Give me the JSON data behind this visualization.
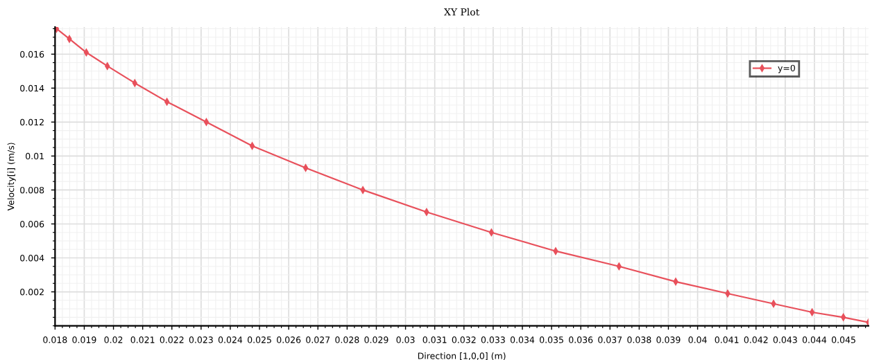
{
  "chart_data": {
    "type": "line",
    "title": "XY Plot",
    "xlabel": "Direction [1,0,0] (m)",
    "ylabel": "Velocity[i] (m/s)",
    "xlim": [
      0.018,
      0.04585
    ],
    "ylim": [
      0,
      0.0176
    ],
    "xticks": [
      0.018,
      0.019,
      0.02,
      0.021,
      0.022,
      0.023,
      0.024,
      0.025,
      0.026,
      0.027,
      0.028,
      0.029,
      0.03,
      0.031,
      0.032,
      0.033,
      0.034,
      0.035,
      0.036,
      0.037,
      0.038,
      0.039,
      0.04,
      0.041,
      0.042,
      0.043,
      0.044,
      0.045
    ],
    "yticks": [
      0.002,
      0.004,
      0.006,
      0.008,
      0.01,
      0.012,
      0.014,
      0.016
    ],
    "grid": true,
    "legend": "top right",
    "marker": "diamond",
    "line_style": "solid",
    "series": [
      {
        "name": "y=0",
        "color": "#e8505b",
        "x": [
          0.018,
          0.01805,
          0.01849,
          0.01907,
          0.01979,
          0.02073,
          0.02183,
          0.02318,
          0.02475,
          0.02658,
          0.02854,
          0.03072,
          0.03294,
          0.03514,
          0.03731,
          0.03925,
          0.04103,
          0.0426,
          0.04392,
          0.04499,
          0.04585
        ],
        "values": [
          0.0175,
          0.0175,
          0.0169,
          0.0161,
          0.0153,
          0.0143,
          0.0132,
          0.012,
          0.0106,
          0.0093,
          0.008,
          0.0067,
          0.0055,
          0.0044,
          0.0035,
          0.0026,
          0.0019,
          0.0013,
          0.0008,
          0.0005,
          0.0002
        ]
      }
    ]
  }
}
